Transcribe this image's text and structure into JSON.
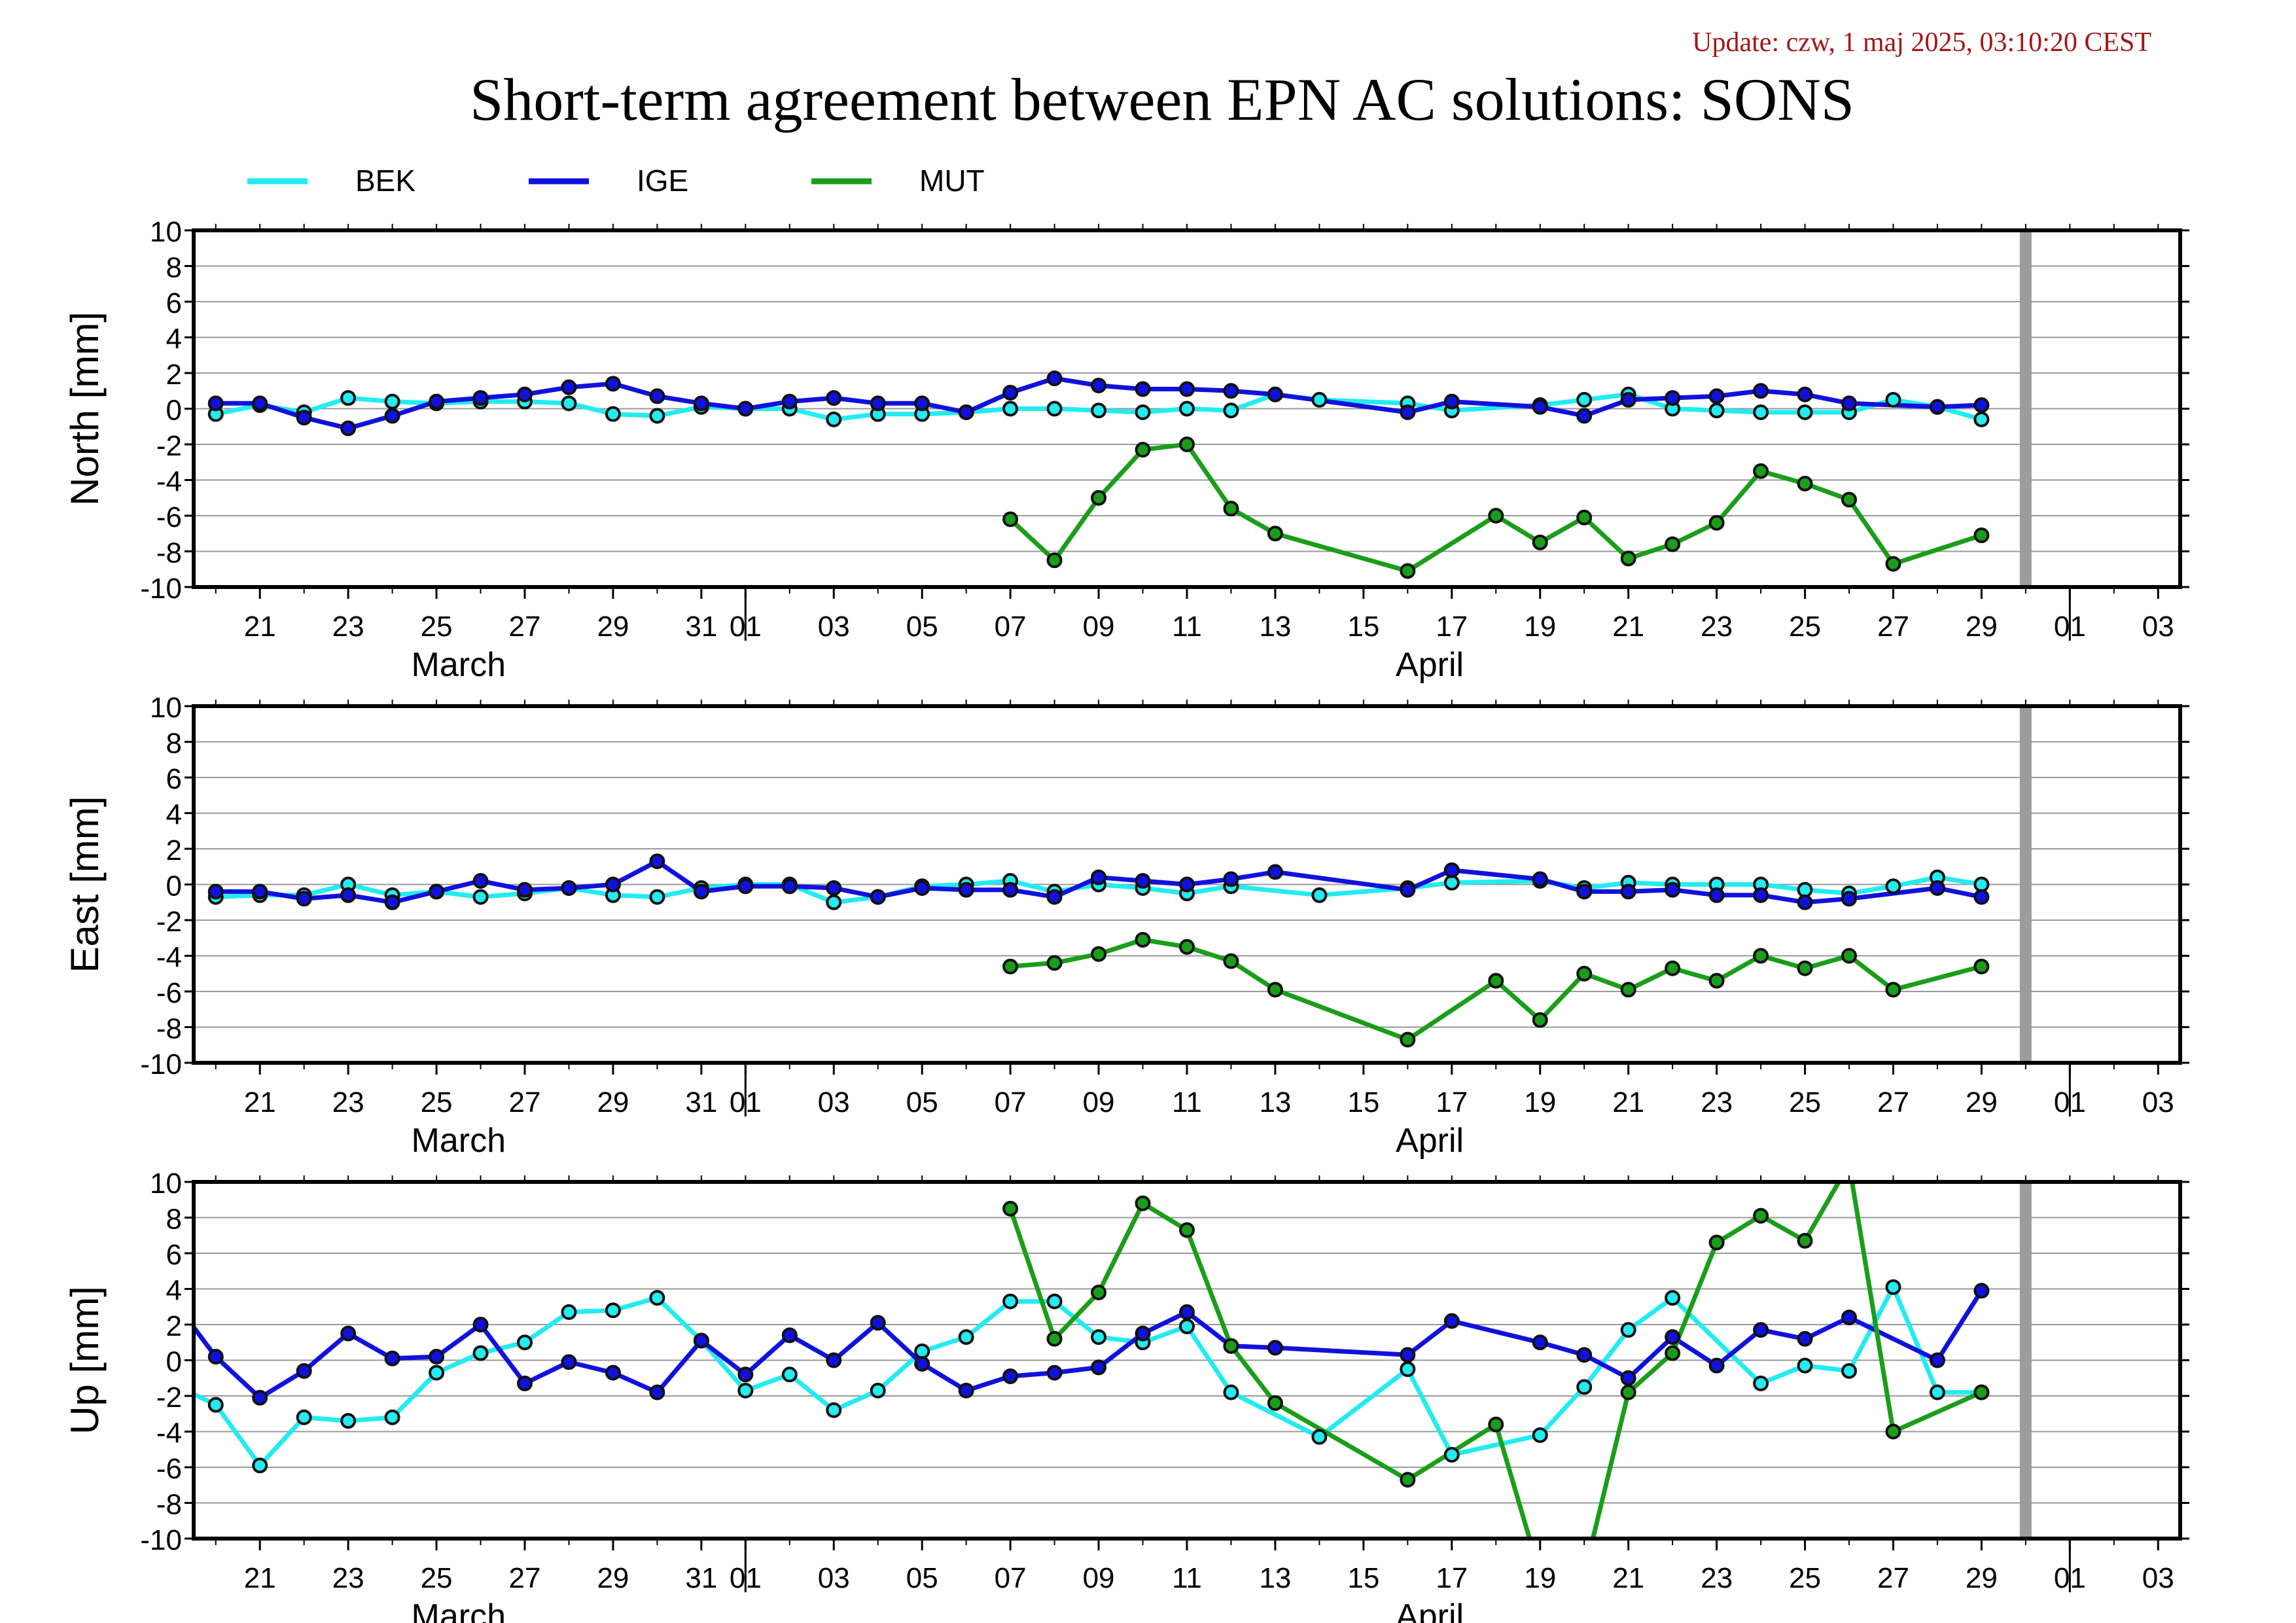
{
  "header": {
    "update": "Update: czw, 1 maj 2025, 03:10:20 CEST",
    "title": "Short-term agreement between EPN AC solutions: SONS"
  },
  "legend": [
    {
      "name": "BEK",
      "color": "#22ecf0"
    },
    {
      "name": "IGE",
      "color": "#1111dd"
    },
    {
      "name": "MUT",
      "color": "#1a9e1a"
    }
  ],
  "chart_data": [
    {
      "type": "line",
      "ylabel": "North [mm]",
      "ylim": [
        -10,
        10
      ],
      "yticks": [
        10,
        8,
        6,
        4,
        2,
        0,
        -2,
        -4,
        -6,
        -8,
        -10
      ],
      "x_unit": "date",
      "xlim": [
        "2025-03-19T12:00",
        "2025-05-03T12:00"
      ],
      "xticks": [
        "21",
        "23",
        "25",
        "27",
        "29",
        "31",
        "01",
        "03",
        "05",
        "07",
        "09",
        "11",
        "13",
        "15",
        "17",
        "19",
        "21",
        "23",
        "25",
        "27",
        "29",
        "01",
        "03"
      ],
      "xtick_dates": [
        "2025-03-21",
        "2025-03-23",
        "2025-03-25",
        "2025-03-27",
        "2025-03-29",
        "2025-03-31",
        "2025-04-01",
        "2025-04-03",
        "2025-04-05",
        "2025-04-07",
        "2025-04-09",
        "2025-04-11",
        "2025-04-13",
        "2025-04-15",
        "2025-04-17",
        "2025-04-19",
        "2025-04-21",
        "2025-04-23",
        "2025-04-25",
        "2025-04-27",
        "2025-04-29",
        "2025-05-01",
        "2025-05-03"
      ],
      "month_labels": [
        {
          "label": "March",
          "date": "2025-03-25T12:00"
        },
        {
          "label": "April",
          "date": "2025-04-16T12:00"
        }
      ],
      "month_boundaries": [
        "2025-04-01",
        "2025-05-01"
      ],
      "marker_line": "2025-04-30",
      "grid": true,
      "series": [
        {
          "name": "BEK",
          "color": "#22ecf0",
          "x": [
            "2025-03-20",
            "2025-03-21",
            "2025-03-22",
            "2025-03-23",
            "2025-03-24",
            "2025-03-25",
            "2025-03-26",
            "2025-03-27",
            "2025-03-28",
            "2025-03-29",
            "2025-03-30",
            "2025-03-31",
            "2025-04-01",
            "2025-04-02",
            "2025-04-03",
            "2025-04-04",
            "2025-04-05",
            "2025-04-06",
            "2025-04-07",
            "2025-04-08",
            "2025-04-09",
            "2025-04-10",
            "2025-04-11",
            "2025-04-12",
            "2025-04-13",
            "2025-04-14",
            "2025-04-16",
            "2025-04-17",
            "2025-04-19",
            "2025-04-20",
            "2025-04-21",
            "2025-04-22",
            "2025-04-23",
            "2025-04-24",
            "2025-04-25",
            "2025-04-26",
            "2025-04-27",
            "2025-04-28",
            "2025-04-29"
          ],
          "y": [
            -0.3,
            0.2,
            -0.2,
            0.6,
            0.4,
            0.3,
            0.4,
            0.4,
            0.3,
            -0.3,
            -0.4,
            0.1,
            0.0,
            0.0,
            -0.6,
            -0.3,
            -0.3,
            -0.2,
            0.0,
            0.0,
            -0.1,
            -0.2,
            0.0,
            -0.1,
            0.8,
            0.5,
            0.3,
            -0.1,
            0.2,
            0.5,
            0.8,
            0.0,
            -0.1,
            -0.2,
            -0.2,
            -0.2,
            0.5,
            0.1,
            -0.6
          ]
        },
        {
          "name": "IGE",
          "color": "#1111dd",
          "x": [
            "2025-03-20",
            "2025-03-21",
            "2025-03-22",
            "2025-03-23",
            "2025-03-24",
            "2025-03-25",
            "2025-03-26",
            "2025-03-27",
            "2025-03-28",
            "2025-03-29",
            "2025-03-30",
            "2025-03-31",
            "2025-04-01",
            "2025-04-02",
            "2025-04-03",
            "2025-04-04",
            "2025-04-05",
            "2025-04-06",
            "2025-04-07",
            "2025-04-08",
            "2025-04-09",
            "2025-04-10",
            "2025-04-11",
            "2025-04-12",
            "2025-04-13",
            "2025-04-16",
            "2025-04-17",
            "2025-04-19",
            "2025-04-20",
            "2025-04-21",
            "2025-04-22",
            "2025-04-23",
            "2025-04-24",
            "2025-04-25",
            "2025-04-26",
            "2025-04-28",
            "2025-04-29"
          ],
          "y": [
            0.3,
            0.3,
            -0.5,
            -1.1,
            -0.4,
            0.4,
            0.6,
            0.8,
            1.2,
            1.4,
            0.7,
            0.3,
            0.0,
            0.4,
            0.6,
            0.3,
            0.3,
            -0.2,
            0.9,
            1.7,
            1.3,
            1.1,
            1.1,
            1.0,
            0.8,
            -0.2,
            0.4,
            0.1,
            -0.4,
            0.5,
            0.6,
            0.7,
            1.0,
            0.8,
            0.3,
            0.1,
            0.2
          ]
        },
        {
          "name": "MUT",
          "color": "#1a9e1a",
          "x": [
            "2025-04-07",
            "2025-04-08",
            "2025-04-09",
            "2025-04-10",
            "2025-04-11",
            "2025-04-12",
            "2025-04-13",
            "2025-04-16",
            "2025-04-18",
            "2025-04-19",
            "2025-04-20",
            "2025-04-21",
            "2025-04-22",
            "2025-04-23",
            "2025-04-24",
            "2025-04-25",
            "2025-04-26",
            "2025-04-27",
            "2025-04-29"
          ],
          "y": [
            -6.2,
            -8.5,
            -5.0,
            -2.3,
            -2.0,
            -5.6,
            -7.0,
            -9.1,
            -6.0,
            -7.5,
            -6.1,
            -8.4,
            -7.6,
            -6.4,
            -3.5,
            -4.2,
            -5.1,
            -8.7,
            -7.1
          ]
        }
      ]
    },
    {
      "type": "line",
      "ylabel": "East [mm]",
      "ylim": [
        -10,
        10
      ],
      "yticks": [
        10,
        8,
        6,
        4,
        2,
        0,
        -2,
        -4,
        -6,
        -8,
        -10
      ],
      "x_unit": "date",
      "xlim": [
        "2025-03-19T12:00",
        "2025-05-03T12:00"
      ],
      "xticks": [
        "21",
        "23",
        "25",
        "27",
        "29",
        "31",
        "01",
        "03",
        "05",
        "07",
        "09",
        "11",
        "13",
        "15",
        "17",
        "19",
        "21",
        "23",
        "25",
        "27",
        "29",
        "01",
        "03"
      ],
      "xtick_dates": [
        "2025-03-21",
        "2025-03-23",
        "2025-03-25",
        "2025-03-27",
        "2025-03-29",
        "2025-03-31",
        "2025-04-01",
        "2025-04-03",
        "2025-04-05",
        "2025-04-07",
        "2025-04-09",
        "2025-04-11",
        "2025-04-13",
        "2025-04-15",
        "2025-04-17",
        "2025-04-19",
        "2025-04-21",
        "2025-04-23",
        "2025-04-25",
        "2025-04-27",
        "2025-04-29",
        "2025-05-01",
        "2025-05-03"
      ],
      "month_labels": [
        {
          "label": "March",
          "date": "2025-03-25T12:00"
        },
        {
          "label": "April",
          "date": "2025-04-16T12:00"
        }
      ],
      "month_boundaries": [
        "2025-04-01",
        "2025-05-01"
      ],
      "marker_line": "2025-04-30",
      "grid": true,
      "series": [
        {
          "name": "BEK",
          "color": "#22ecf0",
          "x": [
            "2025-03-20",
            "2025-03-21",
            "2025-03-22",
            "2025-03-23",
            "2025-03-24",
            "2025-03-25",
            "2025-03-26",
            "2025-03-27",
            "2025-03-28",
            "2025-03-29",
            "2025-03-30",
            "2025-03-31",
            "2025-04-01",
            "2025-04-02",
            "2025-04-03",
            "2025-04-04",
            "2025-04-05",
            "2025-04-06",
            "2025-04-07",
            "2025-04-08",
            "2025-04-09",
            "2025-04-10",
            "2025-04-11",
            "2025-04-12",
            "2025-04-14",
            "2025-04-16",
            "2025-04-17",
            "2025-04-19",
            "2025-04-20",
            "2025-04-21",
            "2025-04-22",
            "2025-04-23",
            "2025-04-24",
            "2025-04-25",
            "2025-04-26",
            "2025-04-27",
            "2025-04-28",
            "2025-04-29"
          ],
          "y": [
            -0.7,
            -0.6,
            -0.6,
            0.0,
            -0.6,
            -0.4,
            -0.7,
            -0.5,
            -0.2,
            -0.6,
            -0.7,
            -0.2,
            0.0,
            0.0,
            -1.0,
            -0.7,
            -0.1,
            0.0,
            0.2,
            -0.4,
            0.0,
            -0.2,
            -0.5,
            -0.1,
            -0.6,
            -0.2,
            0.1,
            0.2,
            -0.2,
            0.1,
            0.0,
            0.0,
            0.0,
            -0.3,
            -0.5,
            -0.1,
            0.4,
            0.0
          ]
        },
        {
          "name": "IGE",
          "color": "#1111dd",
          "x": [
            "2025-03-20",
            "2025-03-21",
            "2025-03-22",
            "2025-03-23",
            "2025-03-24",
            "2025-03-25",
            "2025-03-26",
            "2025-03-27",
            "2025-03-28",
            "2025-03-29",
            "2025-03-30",
            "2025-03-31",
            "2025-04-01",
            "2025-04-02",
            "2025-04-03",
            "2025-04-04",
            "2025-04-05",
            "2025-04-06",
            "2025-04-07",
            "2025-04-08",
            "2025-04-09",
            "2025-04-10",
            "2025-04-11",
            "2025-04-12",
            "2025-04-13",
            "2025-04-16",
            "2025-04-17",
            "2025-04-19",
            "2025-04-20",
            "2025-04-21",
            "2025-04-22",
            "2025-04-23",
            "2025-04-24",
            "2025-04-25",
            "2025-04-26",
            "2025-04-28",
            "2025-04-29"
          ],
          "y": [
            -0.4,
            -0.4,
            -0.8,
            -0.6,
            -1.0,
            -0.4,
            0.2,
            -0.3,
            -0.2,
            0.0,
            1.3,
            -0.4,
            -0.1,
            -0.1,
            -0.2,
            -0.7,
            -0.2,
            -0.3,
            -0.3,
            -0.7,
            0.4,
            0.2,
            0.0,
            0.3,
            0.7,
            -0.3,
            0.8,
            0.3,
            -0.4,
            -0.4,
            -0.3,
            -0.6,
            -0.6,
            -1.0,
            -0.8,
            -0.2,
            -0.7
          ]
        },
        {
          "name": "MUT",
          "color": "#1a9e1a",
          "x": [
            "2025-04-07",
            "2025-04-08",
            "2025-04-09",
            "2025-04-10",
            "2025-04-11",
            "2025-04-12",
            "2025-04-13",
            "2025-04-16",
            "2025-04-18",
            "2025-04-19",
            "2025-04-20",
            "2025-04-21",
            "2025-04-22",
            "2025-04-23",
            "2025-04-24",
            "2025-04-25",
            "2025-04-26",
            "2025-04-27",
            "2025-04-29"
          ],
          "y": [
            -4.6,
            -4.4,
            -3.9,
            -3.1,
            -3.5,
            -4.3,
            -5.9,
            -8.7,
            -5.4,
            -7.6,
            -5.0,
            -5.9,
            -4.7,
            -5.4,
            -4.0,
            -4.7,
            -4.0,
            -5.9,
            -4.6
          ]
        }
      ]
    },
    {
      "type": "line",
      "ylabel": "Up [mm]",
      "ylim": [
        -10,
        10
      ],
      "yticks": [
        10,
        8,
        6,
        4,
        2,
        0,
        -2,
        -4,
        -6,
        -8,
        -10
      ],
      "x_unit": "date",
      "xlim": [
        "2025-03-19T12:00",
        "2025-05-03T12:00"
      ],
      "xticks": [
        "21",
        "23",
        "25",
        "27",
        "29",
        "31",
        "01",
        "03",
        "05",
        "07",
        "09",
        "11",
        "13",
        "15",
        "17",
        "19",
        "21",
        "23",
        "25",
        "27",
        "29",
        "01",
        "03"
      ],
      "xtick_dates": [
        "2025-03-21",
        "2025-03-23",
        "2025-03-25",
        "2025-03-27",
        "2025-03-29",
        "2025-03-31",
        "2025-04-01",
        "2025-04-03",
        "2025-04-05",
        "2025-04-07",
        "2025-04-09",
        "2025-04-11",
        "2025-04-13",
        "2025-04-15",
        "2025-04-17",
        "2025-04-19",
        "2025-04-21",
        "2025-04-23",
        "2025-04-25",
        "2025-04-27",
        "2025-04-29",
        "2025-05-01",
        "2025-05-03"
      ],
      "month_labels": [
        {
          "label": "March",
          "date": "2025-03-25T12:00"
        },
        {
          "label": "April",
          "date": "2025-04-16T12:00"
        }
      ],
      "month_boundaries": [
        "2025-04-01",
        "2025-05-01"
      ],
      "marker_line": "2025-04-30",
      "grid": true,
      "series": [
        {
          "name": "BEK",
          "color": "#22ecf0",
          "x": [
            "2025-03-19",
            "2025-03-20",
            "2025-03-21",
            "2025-03-22",
            "2025-03-23",
            "2025-03-24",
            "2025-03-25",
            "2025-03-26",
            "2025-03-27",
            "2025-03-28",
            "2025-03-29",
            "2025-03-30",
            "2025-03-31",
            "2025-04-01",
            "2025-04-02",
            "2025-04-03",
            "2025-04-04",
            "2025-04-05",
            "2025-04-06",
            "2025-04-07",
            "2025-04-08",
            "2025-04-09",
            "2025-04-10",
            "2025-04-11",
            "2025-04-12",
            "2025-04-14",
            "2025-04-16",
            "2025-04-17",
            "2025-04-19",
            "2025-04-20",
            "2025-04-21",
            "2025-04-22",
            "2025-04-24",
            "2025-04-25",
            "2025-04-26",
            "2025-04-27",
            "2025-04-28",
            "2025-04-29"
          ],
          "y": [
            -1.3,
            -2.5,
            -5.9,
            -3.2,
            -3.4,
            -3.2,
            -0.7,
            0.4,
            1.0,
            2.7,
            2.8,
            3.5,
            1.1,
            -1.7,
            -0.8,
            -2.8,
            -1.7,
            0.5,
            1.3,
            3.3,
            3.3,
            1.3,
            1.0,
            1.9,
            -1.8,
            -4.3,
            -0.5,
            -5.3,
            -4.2,
            -1.5,
            1.7,
            3.5,
            -1.3,
            -0.3,
            -0.6,
            4.1,
            -1.8,
            -1.8
          ]
        },
        {
          "name": "IGE",
          "color": "#1111dd",
          "x": [
            "2025-03-19",
            "2025-03-20",
            "2025-03-21",
            "2025-03-22",
            "2025-03-23",
            "2025-03-24",
            "2025-03-25",
            "2025-03-26",
            "2025-03-27",
            "2025-03-28",
            "2025-03-29",
            "2025-03-30",
            "2025-03-31",
            "2025-04-01",
            "2025-04-02",
            "2025-04-03",
            "2025-04-04",
            "2025-04-05",
            "2025-04-06",
            "2025-04-07",
            "2025-04-08",
            "2025-04-09",
            "2025-04-10",
            "2025-04-11",
            "2025-04-12",
            "2025-04-13",
            "2025-04-16",
            "2025-04-17",
            "2025-04-19",
            "2025-04-20",
            "2025-04-21",
            "2025-04-22",
            "2025-04-23",
            "2025-04-24",
            "2025-04-25",
            "2025-04-26",
            "2025-04-28",
            "2025-04-29"
          ],
          "y": [
            3.5,
            0.2,
            -2.1,
            -0.6,
            1.5,
            0.1,
            0.2,
            2.0,
            -1.3,
            -0.1,
            -0.7,
            -1.8,
            1.1,
            -0.8,
            1.4,
            0.0,
            2.1,
            -0.2,
            -1.7,
            -0.9,
            -0.7,
            -0.4,
            1.5,
            2.7,
            0.8,
            0.7,
            0.3,
            2.2,
            1.0,
            0.3,
            -1.0,
            1.3,
            -0.3,
            1.7,
            1.2,
            2.4,
            0.0,
            3.9
          ]
        },
        {
          "name": "MUT",
          "color": "#1a9e1a",
          "x": [
            "2025-04-07",
            "2025-04-08",
            "2025-04-09",
            "2025-04-10",
            "2025-04-11",
            "2025-04-12",
            "2025-04-13",
            "2025-04-16",
            "2025-04-18",
            "2025-04-19",
            "2025-04-20",
            "2025-04-21",
            "2025-04-22",
            "2025-04-23",
            "2025-04-24",
            "2025-04-25",
            "2025-04-26",
            "2025-04-27",
            "2025-04-29"
          ],
          "y": [
            8.5,
            1.2,
            3.8,
            8.8,
            7.3,
            0.8,
            -2.4,
            -6.7,
            -3.6,
            -12.0,
            -12.0,
            -1.8,
            0.4,
            6.6,
            8.1,
            6.7,
            11.0,
            -4.0,
            -1.8
          ],
          "markers_hidden_x": [
            "2025-04-19",
            "2025-04-20",
            "2025-04-26"
          ]
        }
      ]
    }
  ]
}
